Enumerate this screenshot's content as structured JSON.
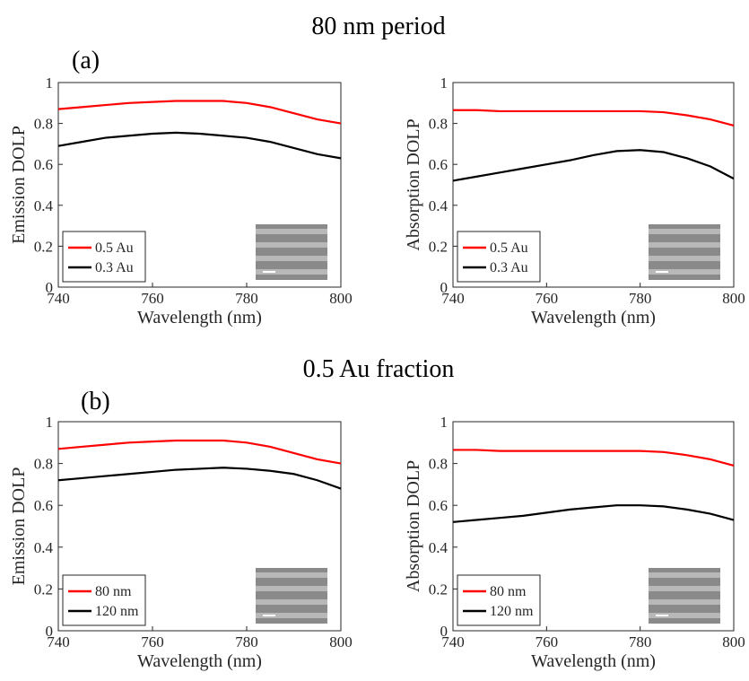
{
  "sections": [
    {
      "title": "80 nm period",
      "label": "(a)"
    },
    {
      "title": "0.5 Au fraction",
      "label": "(b)"
    }
  ],
  "chart_data": [
    {
      "type": "line",
      "xlabel": "Wavelength (nm)",
      "ylabel": "Emission DOLP",
      "x": [
        740,
        745,
        750,
        755,
        760,
        765,
        770,
        775,
        780,
        785,
        790,
        795,
        800
      ],
      "series": [
        {
          "name": "0.5 Au",
          "color": "#ff0000",
          "values": [
            0.87,
            0.88,
            0.89,
            0.9,
            0.905,
            0.91,
            0.91,
            0.91,
            0.9,
            0.88,
            0.85,
            0.82,
            0.8
          ]
        },
        {
          "name": "0.3 Au",
          "color": "#000000",
          "values": [
            0.69,
            0.71,
            0.73,
            0.74,
            0.75,
            0.755,
            0.75,
            0.74,
            0.73,
            0.71,
            0.68,
            0.65,
            0.63
          ]
        }
      ],
      "xlim": [
        740,
        800
      ],
      "ylim": [
        0,
        1
      ],
      "xticks": [
        740,
        760,
        780,
        800
      ],
      "yticks": [
        0,
        0.2,
        0.4,
        0.6,
        0.8,
        1
      ],
      "legend": "lower left"
    },
    {
      "type": "line",
      "xlabel": "Wavelength (nm)",
      "ylabel": "Absorption DOLP",
      "x": [
        740,
        745,
        750,
        755,
        760,
        765,
        770,
        775,
        780,
        785,
        790,
        795,
        800
      ],
      "series": [
        {
          "name": "0.5 Au",
          "color": "#ff0000",
          "values": [
            0.865,
            0.865,
            0.86,
            0.86,
            0.86,
            0.86,
            0.86,
            0.86,
            0.86,
            0.855,
            0.84,
            0.82,
            0.79
          ]
        },
        {
          "name": "0.3 Au",
          "color": "#000000",
          "values": [
            0.52,
            0.54,
            0.56,
            0.58,
            0.6,
            0.62,
            0.645,
            0.665,
            0.67,
            0.66,
            0.63,
            0.59,
            0.53
          ]
        }
      ],
      "xlim": [
        740,
        800
      ],
      "ylim": [
        0,
        1
      ],
      "xticks": [
        740,
        760,
        780,
        800
      ],
      "yticks": [
        0,
        0.2,
        0.4,
        0.6,
        0.8,
        1
      ],
      "legend": "lower left"
    },
    {
      "type": "line",
      "xlabel": "Wavelength (nm)",
      "ylabel": "Emission DOLP",
      "x": [
        740,
        745,
        750,
        755,
        760,
        765,
        770,
        775,
        780,
        785,
        790,
        795,
        800
      ],
      "series": [
        {
          "name": "80 nm",
          "color": "#ff0000",
          "values": [
            0.87,
            0.88,
            0.89,
            0.9,
            0.905,
            0.91,
            0.91,
            0.91,
            0.9,
            0.88,
            0.85,
            0.82,
            0.8
          ]
        },
        {
          "name": "120 nm",
          "color": "#000000",
          "values": [
            0.72,
            0.73,
            0.74,
            0.75,
            0.76,
            0.77,
            0.775,
            0.78,
            0.775,
            0.765,
            0.75,
            0.72,
            0.68
          ]
        }
      ],
      "xlim": [
        740,
        800
      ],
      "ylim": [
        0,
        1
      ],
      "xticks": [
        740,
        760,
        780,
        800
      ],
      "yticks": [
        0,
        0.2,
        0.4,
        0.6,
        0.8,
        1
      ],
      "legend": "lower left"
    },
    {
      "type": "line",
      "xlabel": "Wavelength (nm)",
      "ylabel": "Absorption DOLP",
      "x": [
        740,
        745,
        750,
        755,
        760,
        765,
        770,
        775,
        780,
        785,
        790,
        795,
        800
      ],
      "series": [
        {
          "name": "80 nm",
          "color": "#ff0000",
          "values": [
            0.865,
            0.865,
            0.86,
            0.86,
            0.86,
            0.86,
            0.86,
            0.86,
            0.86,
            0.855,
            0.84,
            0.82,
            0.79
          ]
        },
        {
          "name": "120 nm",
          "color": "#000000",
          "values": [
            0.52,
            0.53,
            0.54,
            0.55,
            0.565,
            0.58,
            0.59,
            0.6,
            0.6,
            0.595,
            0.58,
            0.56,
            0.53
          ]
        }
      ],
      "xlim": [
        740,
        800
      ],
      "ylim": [
        0,
        1
      ],
      "xticks": [
        740,
        760,
        780,
        800
      ],
      "yticks": [
        0,
        0.2,
        0.4,
        0.6,
        0.8,
        1
      ],
      "legend": "lower left"
    }
  ]
}
